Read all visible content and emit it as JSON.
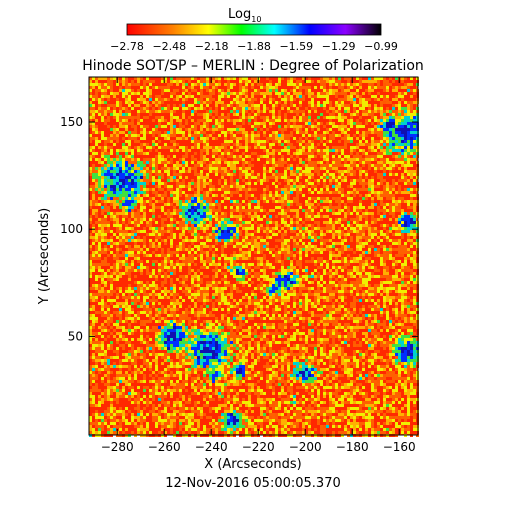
{
  "chart_data": {
    "type": "heatmap",
    "title": "Hinode SOT/SP – MERLIN : Degree of Polarization",
    "colorbar": {
      "label_main": "Log",
      "label_sub": "10",
      "ticks": [
        "−2.78",
        "−2.48",
        "−2.18",
        "−1.88",
        "−1.59",
        "−1.29",
        "−0.99"
      ],
      "range": [
        -2.78,
        -0.99
      ]
    },
    "xlabel": "X (Arcseconds)",
    "ylabel": "Y (Arcseconds)",
    "xlim": [
      -292,
      -152
    ],
    "ylim": [
      4,
      171
    ],
    "x_ticks": [
      {
        "value": -280,
        "label": "−280"
      },
      {
        "value": -260,
        "label": "−260"
      },
      {
        "value": -240,
        "label": "−240"
      },
      {
        "value": -220,
        "label": "−220"
      },
      {
        "value": -200,
        "label": "−200"
      },
      {
        "value": -180,
        "label": "−180"
      },
      {
        "value": -160,
        "label": "−160"
      }
    ],
    "y_ticks": [
      {
        "value": 50,
        "label": "50"
      },
      {
        "value": 100,
        "label": "100"
      },
      {
        "value": 150,
        "label": "150"
      }
    ],
    "timestamp": "12-Nov-2016 05:00:05.370",
    "colormap": [
      "#ff0000",
      "#ff7f00",
      "#ffff00",
      "#00ff00",
      "#00ffff",
      "#0000ff",
      "#8b00ff",
      "#000000"
    ],
    "high_polarization_regions": [
      {
        "x": -241,
        "y": 44,
        "r": 6
      },
      {
        "x": -256,
        "y": 50,
        "r": 4
      },
      {
        "x": -278,
        "y": 123,
        "r": 6
      },
      {
        "x": -275,
        "y": 112,
        "r": 2
      },
      {
        "x": -157,
        "y": 145,
        "r": 6
      },
      {
        "x": -164,
        "y": 148,
        "r": 3
      },
      {
        "x": -247,
        "y": 108,
        "r": 4
      },
      {
        "x": -234,
        "y": 99,
        "r": 3
      },
      {
        "x": -228,
        "y": 80,
        "r": 2
      },
      {
        "x": -208,
        "y": 76,
        "r": 3
      },
      {
        "x": -213,
        "y": 72,
        "r": 2
      },
      {
        "x": -200,
        "y": 33,
        "r": 3
      },
      {
        "x": -156,
        "y": 43,
        "r": 4
      },
      {
        "x": -156,
        "y": 103,
        "r": 3
      },
      {
        "x": -231,
        "y": 11,
        "r": 3
      },
      {
        "x": -228,
        "y": 34,
        "r": 2
      },
      {
        "x": -238,
        "y": 32,
        "r": 2
      }
    ]
  }
}
